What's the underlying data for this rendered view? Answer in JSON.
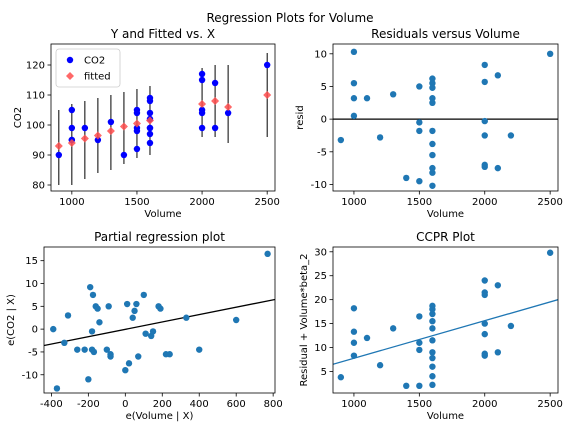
{
  "figure": {
    "suptitle": "Regression Plots for Volume"
  },
  "chart_data": [
    {
      "type": "scatter",
      "title": "Y and Fitted vs. X",
      "xlabel": "Volume",
      "ylabel": "CO2",
      "xlim": [
        840,
        2560
      ],
      "ylim": [
        78,
        127
      ],
      "xticks": [
        1000,
        1500,
        2000,
        2500
      ],
      "yticks": [
        80,
        90,
        100,
        110,
        120
      ],
      "legend": {
        "placement": "top-left",
        "entries": [
          "CO2",
          "fitted"
        ]
      },
      "colors": {
        "observed": "#0000ff",
        "fitted": "#ff4d4d",
        "errorbar": "#000000"
      },
      "series": [
        {
          "name": "CO2",
          "marker": "circle",
          "points": [
            [
              900,
              90
            ],
            [
              1000,
              99
            ],
            [
              1000,
              95
            ],
            [
              1000,
              95
            ],
            [
              1000,
              105
            ],
            [
              1100,
              99
            ],
            [
              1200,
              95
            ],
            [
              1300,
              101
            ],
            [
              1400,
              90
            ],
            [
              1500,
              104
            ],
            [
              1500,
              105
            ],
            [
              1500,
              99
            ],
            [
              1500,
              92
            ],
            [
              1500,
              98
            ],
            [
              1600,
              94
            ],
            [
              1600,
              97
            ],
            [
              1600,
              99
            ],
            [
              1600,
              104
            ],
            [
              1600,
              108
            ],
            [
              1600,
              109
            ],
            [
              1600,
              99
            ],
            [
              1600,
              102
            ],
            [
              2000,
              104
            ],
            [
              2000,
              99
            ],
            [
              2000,
              105
            ],
            [
              2000,
              115
            ],
            [
              2000,
              117
            ],
            [
              2100,
              99
            ],
            [
              2100,
              114
            ],
            [
              2200,
              104
            ],
            [
              2500,
              120
            ]
          ]
        },
        {
          "name": "fitted",
          "marker": "diamond",
          "points": [
            [
              900,
              93
            ],
            [
              1000,
              94
            ],
            [
              1100,
              95.5
            ],
            [
              1200,
              96.5
            ],
            [
              1300,
              98
            ],
            [
              1400,
              99.5
            ],
            [
              1500,
              100.5
            ],
            [
              1600,
              101.5
            ],
            [
              2000,
              107
            ],
            [
              2100,
              108
            ],
            [
              2200,
              106
            ],
            [
              2500,
              110
            ]
          ],
          "error_bars": [
            [
              900,
              80,
              105
            ],
            [
              1000,
              80,
              107
            ],
            [
              1100,
              82,
              108
            ],
            [
              1200,
              84,
              109
            ],
            [
              1300,
              85,
              110
            ],
            [
              1400,
              87,
              111
            ],
            [
              1500,
              89,
              112
            ],
            [
              1600,
              90,
              113
            ],
            [
              2000,
              96,
              119
            ],
            [
              2100,
              96,
              120
            ],
            [
              2200,
              94,
              120
            ],
            [
              2500,
              96,
              124
            ]
          ]
        }
      ]
    },
    {
      "type": "scatter",
      "title": "Residuals versus Volume",
      "xlabel": "Volume",
      "ylabel": "resid",
      "xlim": [
        840,
        2560
      ],
      "ylim": [
        -11,
        11.5
      ],
      "xticks": [
        1000,
        1500,
        2000,
        2500
      ],
      "yticks": [
        -10,
        -5,
        0,
        5,
        10
      ],
      "hline": 0,
      "colors": {
        "points": "#1f77b4",
        "line": "#000000"
      },
      "points": [
        [
          900,
          -3.2
        ],
        [
          1000,
          10.3
        ],
        [
          1000,
          5.5
        ],
        [
          1000,
          3.2
        ],
        [
          1000,
          0.5
        ],
        [
          1100,
          3.2
        ],
        [
          1200,
          -2.8
        ],
        [
          1300,
          3.8
        ],
        [
          1400,
          -9
        ],
        [
          1500,
          5
        ],
        [
          1500,
          -0.5
        ],
        [
          1500,
          -1.8
        ],
        [
          1500,
          -9.5
        ],
        [
          1600,
          6.2
        ],
        [
          1600,
          5.5
        ],
        [
          1600,
          4.8
        ],
        [
          1600,
          3.2
        ],
        [
          1600,
          2.5
        ],
        [
          1600,
          -1.8
        ],
        [
          1600,
          -3.8
        ],
        [
          1600,
          -5.5
        ],
        [
          1600,
          -7.5
        ],
        [
          1600,
          -8.2
        ],
        [
          1600,
          -10.2
        ],
        [
          2000,
          8.3
        ],
        [
          2000,
          5.7
        ],
        [
          2000,
          -0.3
        ],
        [
          2000,
          -2.5
        ],
        [
          2000,
          -7
        ],
        [
          2000,
          -7.3
        ],
        [
          2100,
          6.7
        ],
        [
          2100,
          -7.5
        ],
        [
          2200,
          -2.5
        ],
        [
          2500,
          10
        ]
      ]
    },
    {
      "type": "scatter",
      "title": "Partial regression plot",
      "xlabel": "e(Volume | X)",
      "ylabel": "e(CO2 | X)",
      "xlim": [
        -440,
        810
      ],
      "ylim": [
        -14,
        18
      ],
      "xticks": [
        -400,
        -200,
        0,
        200,
        400,
        600,
        800
      ],
      "yticks": [
        -10,
        -5,
        0,
        5,
        10,
        15
      ],
      "fit_line": {
        "x": [
          -440,
          810
        ],
        "y": [
          -3.6,
          6.5
        ]
      },
      "colors": {
        "points": "#1f77b4",
        "line": "#000000"
      },
      "points": [
        [
          -390,
          0
        ],
        [
          -370,
          -13
        ],
        [
          -330,
          -3
        ],
        [
          -310,
          3
        ],
        [
          -260,
          -4.5
        ],
        [
          -220,
          -4.5
        ],
        [
          -200,
          -11
        ],
        [
          -190,
          9.2
        ],
        [
          -180,
          -0.5
        ],
        [
          -180,
          -4.5
        ],
        [
          -170,
          -5
        ],
        [
          -175,
          7.5
        ],
        [
          -160,
          5
        ],
        [
          -150,
          4.5
        ],
        [
          -140,
          1.5
        ],
        [
          -100,
          -4.5
        ],
        [
          -90,
          5
        ],
        [
          -80,
          -5.5
        ],
        [
          -80,
          -6
        ],
        [
          0,
          -9
        ],
        [
          10,
          5.5
        ],
        [
          20,
          -7.5
        ],
        [
          40,
          2.5
        ],
        [
          50,
          4
        ],
        [
          60,
          5.5
        ],
        [
          70,
          -6
        ],
        [
          100,
          7.5
        ],
        [
          110,
          -1
        ],
        [
          140,
          -1.5
        ],
        [
          150,
          -0.5
        ],
        [
          180,
          5
        ],
        [
          190,
          4.5
        ],
        [
          220,
          -5.5
        ],
        [
          240,
          -5.5
        ],
        [
          330,
          2.5
        ],
        [
          400,
          -4.5
        ],
        [
          600,
          2
        ],
        [
          770,
          16.5
        ]
      ]
    },
    {
      "type": "scatter",
      "title": "CCPR Plot",
      "xlabel": "Volume",
      "ylabel": "Residual + Volume*beta_2",
      "xlim": [
        840,
        2560
      ],
      "ylim": [
        0.5,
        31
      ],
      "xticks": [
        1000,
        1500,
        2000,
        2500
      ],
      "yticks": [
        5,
        10,
        15,
        20,
        25,
        30
      ],
      "fit_line": {
        "x": [
          840,
          2560
        ],
        "y": [
          6.5,
          20
        ]
      },
      "colors": {
        "points": "#1f77b4",
        "line": "#1f77b4"
      },
      "points": [
        [
          900,
          3.8
        ],
        [
          1000,
          18.2
        ],
        [
          1000,
          13.3
        ],
        [
          1000,
          11
        ],
        [
          1000,
          8.3
        ],
        [
          1100,
          12
        ],
        [
          1200,
          6.3
        ],
        [
          1300,
          14
        ],
        [
          1400,
          2
        ],
        [
          1500,
          11
        ],
        [
          1500,
          9.5
        ],
        [
          1500,
          16.5
        ],
        [
          1500,
          2
        ],
        [
          1600,
          18.7
        ],
        [
          1600,
          18
        ],
        [
          1600,
          17
        ],
        [
          1600,
          15.5
        ],
        [
          1600,
          14
        ],
        [
          1600,
          11.5
        ],
        [
          1600,
          9
        ],
        [
          1600,
          7.8
        ],
        [
          1600,
          6
        ],
        [
          1600,
          4
        ],
        [
          1600,
          2.2
        ],
        [
          2000,
          24
        ],
        [
          2000,
          21.5
        ],
        [
          2000,
          21
        ],
        [
          2000,
          15
        ],
        [
          2000,
          12.8
        ],
        [
          2000,
          8.7
        ],
        [
          2000,
          8.3
        ],
        [
          2100,
          23
        ],
        [
          2100,
          9
        ],
        [
          2200,
          14.5
        ],
        [
          2500,
          29.8
        ]
      ]
    }
  ]
}
